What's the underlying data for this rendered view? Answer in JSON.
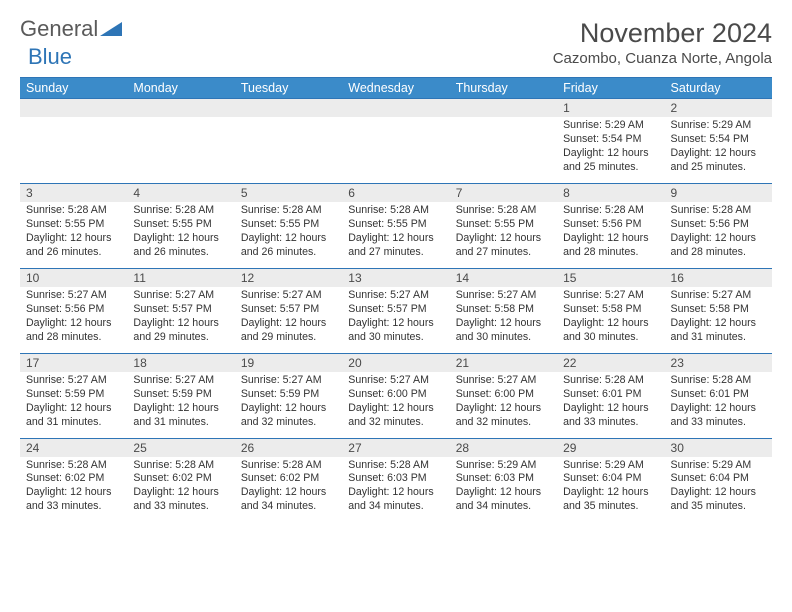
{
  "brand": {
    "word1": "General",
    "word2": "Blue"
  },
  "title": "November 2024",
  "location": "Cazombo, Cuanza Norte, Angola",
  "colors": {
    "header_bg": "#3b8bc9",
    "border": "#2e75b6",
    "daynum_bg": "#ececec",
    "text": "#4a4a4a"
  },
  "dow": [
    "Sunday",
    "Monday",
    "Tuesday",
    "Wednesday",
    "Thursday",
    "Friday",
    "Saturday"
  ],
  "weeks": [
    [
      {
        "n": "",
        "sr": "",
        "ss": "",
        "dl": ""
      },
      {
        "n": "",
        "sr": "",
        "ss": "",
        "dl": ""
      },
      {
        "n": "",
        "sr": "",
        "ss": "",
        "dl": ""
      },
      {
        "n": "",
        "sr": "",
        "ss": "",
        "dl": ""
      },
      {
        "n": "",
        "sr": "",
        "ss": "",
        "dl": ""
      },
      {
        "n": "1",
        "sr": "Sunrise: 5:29 AM",
        "ss": "Sunset: 5:54 PM",
        "dl": "Daylight: 12 hours and 25 minutes."
      },
      {
        "n": "2",
        "sr": "Sunrise: 5:29 AM",
        "ss": "Sunset: 5:54 PM",
        "dl": "Daylight: 12 hours and 25 minutes."
      }
    ],
    [
      {
        "n": "3",
        "sr": "Sunrise: 5:28 AM",
        "ss": "Sunset: 5:55 PM",
        "dl": "Daylight: 12 hours and 26 minutes."
      },
      {
        "n": "4",
        "sr": "Sunrise: 5:28 AM",
        "ss": "Sunset: 5:55 PM",
        "dl": "Daylight: 12 hours and 26 minutes."
      },
      {
        "n": "5",
        "sr": "Sunrise: 5:28 AM",
        "ss": "Sunset: 5:55 PM",
        "dl": "Daylight: 12 hours and 26 minutes."
      },
      {
        "n": "6",
        "sr": "Sunrise: 5:28 AM",
        "ss": "Sunset: 5:55 PM",
        "dl": "Daylight: 12 hours and 27 minutes."
      },
      {
        "n": "7",
        "sr": "Sunrise: 5:28 AM",
        "ss": "Sunset: 5:55 PM",
        "dl": "Daylight: 12 hours and 27 minutes."
      },
      {
        "n": "8",
        "sr": "Sunrise: 5:28 AM",
        "ss": "Sunset: 5:56 PM",
        "dl": "Daylight: 12 hours and 28 minutes."
      },
      {
        "n": "9",
        "sr": "Sunrise: 5:28 AM",
        "ss": "Sunset: 5:56 PM",
        "dl": "Daylight: 12 hours and 28 minutes."
      }
    ],
    [
      {
        "n": "10",
        "sr": "Sunrise: 5:27 AM",
        "ss": "Sunset: 5:56 PM",
        "dl": "Daylight: 12 hours and 28 minutes."
      },
      {
        "n": "11",
        "sr": "Sunrise: 5:27 AM",
        "ss": "Sunset: 5:57 PM",
        "dl": "Daylight: 12 hours and 29 minutes."
      },
      {
        "n": "12",
        "sr": "Sunrise: 5:27 AM",
        "ss": "Sunset: 5:57 PM",
        "dl": "Daylight: 12 hours and 29 minutes."
      },
      {
        "n": "13",
        "sr": "Sunrise: 5:27 AM",
        "ss": "Sunset: 5:57 PM",
        "dl": "Daylight: 12 hours and 30 minutes."
      },
      {
        "n": "14",
        "sr": "Sunrise: 5:27 AM",
        "ss": "Sunset: 5:58 PM",
        "dl": "Daylight: 12 hours and 30 minutes."
      },
      {
        "n": "15",
        "sr": "Sunrise: 5:27 AM",
        "ss": "Sunset: 5:58 PM",
        "dl": "Daylight: 12 hours and 30 minutes."
      },
      {
        "n": "16",
        "sr": "Sunrise: 5:27 AM",
        "ss": "Sunset: 5:58 PM",
        "dl": "Daylight: 12 hours and 31 minutes."
      }
    ],
    [
      {
        "n": "17",
        "sr": "Sunrise: 5:27 AM",
        "ss": "Sunset: 5:59 PM",
        "dl": "Daylight: 12 hours and 31 minutes."
      },
      {
        "n": "18",
        "sr": "Sunrise: 5:27 AM",
        "ss": "Sunset: 5:59 PM",
        "dl": "Daylight: 12 hours and 31 minutes."
      },
      {
        "n": "19",
        "sr": "Sunrise: 5:27 AM",
        "ss": "Sunset: 5:59 PM",
        "dl": "Daylight: 12 hours and 32 minutes."
      },
      {
        "n": "20",
        "sr": "Sunrise: 5:27 AM",
        "ss": "Sunset: 6:00 PM",
        "dl": "Daylight: 12 hours and 32 minutes."
      },
      {
        "n": "21",
        "sr": "Sunrise: 5:27 AM",
        "ss": "Sunset: 6:00 PM",
        "dl": "Daylight: 12 hours and 32 minutes."
      },
      {
        "n": "22",
        "sr": "Sunrise: 5:28 AM",
        "ss": "Sunset: 6:01 PM",
        "dl": "Daylight: 12 hours and 33 minutes."
      },
      {
        "n": "23",
        "sr": "Sunrise: 5:28 AM",
        "ss": "Sunset: 6:01 PM",
        "dl": "Daylight: 12 hours and 33 minutes."
      }
    ],
    [
      {
        "n": "24",
        "sr": "Sunrise: 5:28 AM",
        "ss": "Sunset: 6:02 PM",
        "dl": "Daylight: 12 hours and 33 minutes."
      },
      {
        "n": "25",
        "sr": "Sunrise: 5:28 AM",
        "ss": "Sunset: 6:02 PM",
        "dl": "Daylight: 12 hours and 33 minutes."
      },
      {
        "n": "26",
        "sr": "Sunrise: 5:28 AM",
        "ss": "Sunset: 6:02 PM",
        "dl": "Daylight: 12 hours and 34 minutes."
      },
      {
        "n": "27",
        "sr": "Sunrise: 5:28 AM",
        "ss": "Sunset: 6:03 PM",
        "dl": "Daylight: 12 hours and 34 minutes."
      },
      {
        "n": "28",
        "sr": "Sunrise: 5:29 AM",
        "ss": "Sunset: 6:03 PM",
        "dl": "Daylight: 12 hours and 34 minutes."
      },
      {
        "n": "29",
        "sr": "Sunrise: 5:29 AM",
        "ss": "Sunset: 6:04 PM",
        "dl": "Daylight: 12 hours and 35 minutes."
      },
      {
        "n": "30",
        "sr": "Sunrise: 5:29 AM",
        "ss": "Sunset: 6:04 PM",
        "dl": "Daylight: 12 hours and 35 minutes."
      }
    ]
  ]
}
